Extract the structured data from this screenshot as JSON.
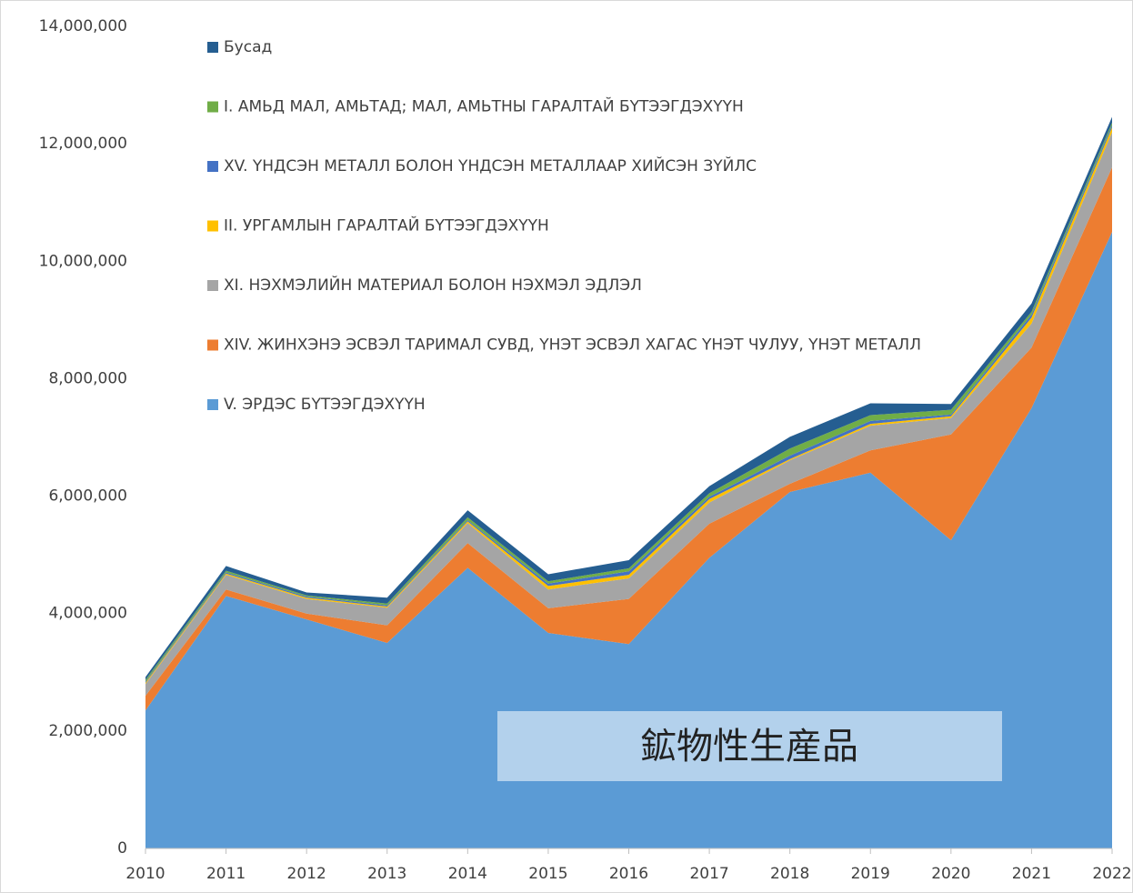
{
  "chart_data": {
    "type": "stacked_area",
    "x": [
      2010,
      2011,
      2012,
      2013,
      2014,
      2015,
      2016,
      2017,
      2018,
      2019,
      2020,
      2021,
      2022
    ],
    "xlim": [
      2010,
      2022
    ],
    "xticks": [
      2010,
      2011,
      2012,
      2013,
      2014,
      2015,
      2016,
      2017,
      2018,
      2019,
      2020,
      2021,
      2022
    ],
    "ylim": [
      0,
      14000000
    ],
    "yticks": [
      0,
      {
        "value": 2000000,
        "label": "2,000,000"
      },
      {
        "value": 4000000,
        "label": "4,000,000"
      },
      {
        "value": 6000000,
        "label": "6,000,000"
      },
      {
        "value": 8000000,
        "label": "8,000,000"
      },
      {
        "value": 10000000,
        "label": "10,000,000"
      },
      {
        "value": 12000000,
        "label": "12,000,000"
      },
      {
        "value": 14000000,
        "label": "14,000,000"
      }
    ],
    "grid": false,
    "legend": "top-left",
    "annotation": "鉱物性生産品",
    "series": [
      {
        "name": "V. ЭРДЭС БҮТЭЭГДЭХҮҮН",
        "color": "#5b9bd5",
        "values": [
          2350000,
          4300000,
          3900000,
          3500000,
          4780000,
          3670000,
          3480000,
          4950000,
          6070000,
          6400000,
          5250000,
          7500000,
          10500000
        ]
      },
      {
        "name": "XIV. ЖИНХЭНЭ ЭСВЭЛ ТАРИМАЛ СУВД, ҮНЭТ ЭСВЭЛ ХАГАС ҮНЭТ ЧУЛУУ, ҮНЭТ МЕТАЛЛ",
        "color": "#ed7d31",
        "values": [
          250000,
          110000,
          100000,
          300000,
          420000,
          420000,
          770000,
          580000,
          140000,
          380000,
          1800000,
          1030000,
          1100000
        ]
      },
      {
        "name": "XI.  НЭХМЭЛИЙН МАТЕРИАЛ БОЛОН НЭХМЭЛ ЭДЛЭЛ",
        "color": "#a5a5a5",
        "values": [
          200000,
          250000,
          250000,
          300000,
          340000,
          320000,
          350000,
          360000,
          400000,
          420000,
          280000,
          410000,
          600000
        ]
      },
      {
        "name": "II. УРГАМЛЫН ГАРАЛТАЙ БҮТЭЭГДЭХҮҮН",
        "color": "#ffc000",
        "values": [
          20000,
          20000,
          20000,
          20000,
          30000,
          60000,
          60000,
          60000,
          20000,
          30000,
          30000,
          100000,
          80000
        ]
      },
      {
        "name": "XV. ҮНДСЭН МЕТАЛЛ БОЛОН ҮНДСЭН МЕТАЛЛААР ХИЙСЭН ЗҮЙЛС",
        "color": "#4472c4",
        "values": [
          20000,
          20000,
          20000,
          20000,
          20000,
          40000,
          60000,
          40000,
          60000,
          50000,
          30000,
          50000,
          40000
        ]
      },
      {
        "name": "I. АМЬД МАЛ, АМЬТАД; МАЛ, АМЬТНЫ ГАРАЛТАЙ БҮТЭЭГДЭХҮҮН",
        "color": "#70ad47",
        "values": [
          30000,
          30000,
          20000,
          30000,
          50000,
          40000,
          50000,
          60000,
          120000,
          100000,
          80000,
          50000,
          40000
        ]
      },
      {
        "name": "Бусад",
        "color": "#255e91",
        "values": [
          50000,
          80000,
          50000,
          100000,
          120000,
          120000,
          140000,
          120000,
          200000,
          200000,
          100000,
          140000,
          100000
        ]
      }
    ]
  }
}
